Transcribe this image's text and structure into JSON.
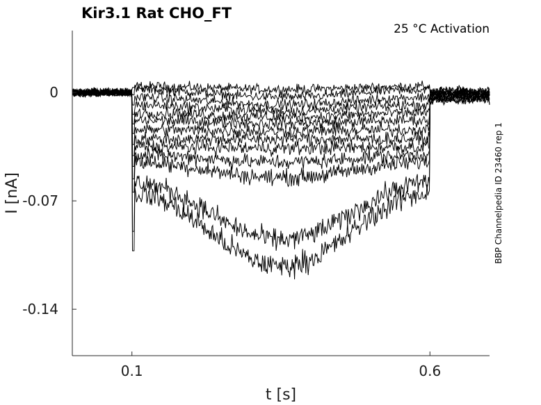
{
  "chart_data": {
    "type": "line",
    "title": "Kir3.1  Rat  CHO_FT",
    "annotation": "25 °C  Activation",
    "side_label": "BBP Channelpedia ID 23460 rep 1",
    "xlabel": "t [s]",
    "ylabel": "I [nA]",
    "xlim": [
      0.0,
      0.7
    ],
    "ylim": [
      -0.17,
      0.04
    ],
    "xticks": [
      0.1,
      0.6
    ],
    "xtick_labels": [
      "0.1",
      "0.6"
    ],
    "yticks": [
      0,
      -0.07,
      -0.14
    ],
    "ytick_labels": [
      "0",
      "-0.07",
      "-0.14"
    ],
    "grid": false,
    "pulse": {
      "start": 0.1,
      "end": 0.6
    },
    "series": [
      {
        "values": [
          0.004,
          0.002,
          0.001
        ]
      },
      {
        "values": [
          0.002,
          -0.003,
          0.001
        ]
      },
      {
        "values": [
          -0.003,
          -0.008,
          0.0
        ]
      },
      {
        "values": [
          -0.008,
          -0.012,
          0.0
        ]
      },
      {
        "values": [
          -0.013,
          -0.016,
          -0.001
        ]
      },
      {
        "values": [
          -0.018,
          -0.02,
          -0.001
        ]
      },
      {
        "values": [
          -0.024,
          -0.025,
          -0.002
        ]
      },
      {
        "values": [
          -0.03,
          -0.03,
          -0.002
        ]
      },
      {
        "values": [
          -0.035,
          -0.036,
          -0.003
        ]
      },
      {
        "values": [
          -0.04,
          -0.045,
          -0.003
        ]
      },
      {
        "values": [
          -0.045,
          -0.055,
          -0.004
        ]
      },
      {
        "values": [
          -0.058,
          -0.095,
          -0.004
        ]
      },
      {
        "values": [
          -0.065,
          -0.112,
          -0.005
        ]
      }
    ]
  }
}
